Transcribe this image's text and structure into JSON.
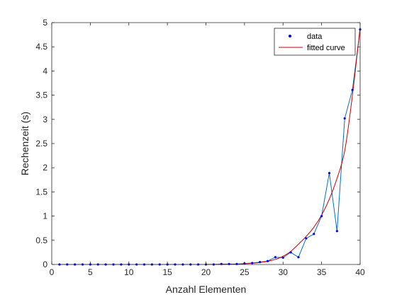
{
  "chart_data": {
    "type": "line",
    "title": "",
    "xlabel": "Anzahl Elementen",
    "ylabel": "Rechenzeit (s)",
    "xlim": [
      0,
      40
    ],
    "ylim": [
      0,
      5
    ],
    "xticks": [
      0,
      5,
      10,
      15,
      20,
      25,
      30,
      35,
      40
    ],
    "xtick_labels": [
      "0",
      "5",
      "10",
      "15",
      "20",
      "25",
      "30",
      "35",
      "40"
    ],
    "yticks": [
      0,
      0.5,
      1,
      1.5,
      2,
      2.5,
      3,
      3.5,
      4,
      4.5,
      5
    ],
    "ytick_labels": [
      "0",
      "0.5",
      "1",
      "1.5",
      "2",
      "2.5",
      "3",
      "3.5",
      "4",
      "4.5",
      "5"
    ],
    "grid": false,
    "legend_position": "top-right",
    "series": [
      {
        "name": "data",
        "style": "markers-with-connecting-line",
        "marker_color": "#0000FF",
        "line_color": "#0072BD",
        "x": [
          1,
          2,
          3,
          4,
          5,
          6,
          7,
          8,
          9,
          10,
          11,
          12,
          13,
          14,
          15,
          16,
          17,
          18,
          19,
          20,
          21,
          22,
          23,
          24,
          25,
          26,
          27,
          28,
          29,
          30,
          31,
          32,
          33,
          34,
          35,
          36,
          37,
          38,
          39,
          40
        ],
        "y": [
          0,
          0,
          0,
          0,
          0,
          0,
          0,
          0,
          0,
          0,
          0,
          0,
          0,
          0,
          0,
          0,
          0,
          0,
          0,
          0,
          0,
          0.01,
          0.01,
          0.01,
          0.02,
          0.03,
          0.05,
          0.07,
          0.15,
          0.14,
          0.25,
          0.15,
          0.54,
          0.63,
          1.0,
          1.89,
          0.69,
          3.02,
          3.61,
          4.86
        ]
      },
      {
        "name": "fitted curve",
        "style": "line",
        "line_color": "#CC0000",
        "x": [
          20,
          21,
          22,
          23,
          24,
          25,
          26,
          27,
          28,
          29,
          30,
          31,
          32,
          33,
          34,
          35,
          36,
          37,
          38,
          39,
          40
        ],
        "y": [
          0.001,
          0.002,
          0.003,
          0.005,
          0.009,
          0.015,
          0.025,
          0.04,
          0.065,
          0.105,
          0.17,
          0.27,
          0.42,
          0.58,
          0.77,
          1.02,
          1.35,
          1.78,
          2.35,
          3.5,
          4.9
        ]
      }
    ]
  }
}
